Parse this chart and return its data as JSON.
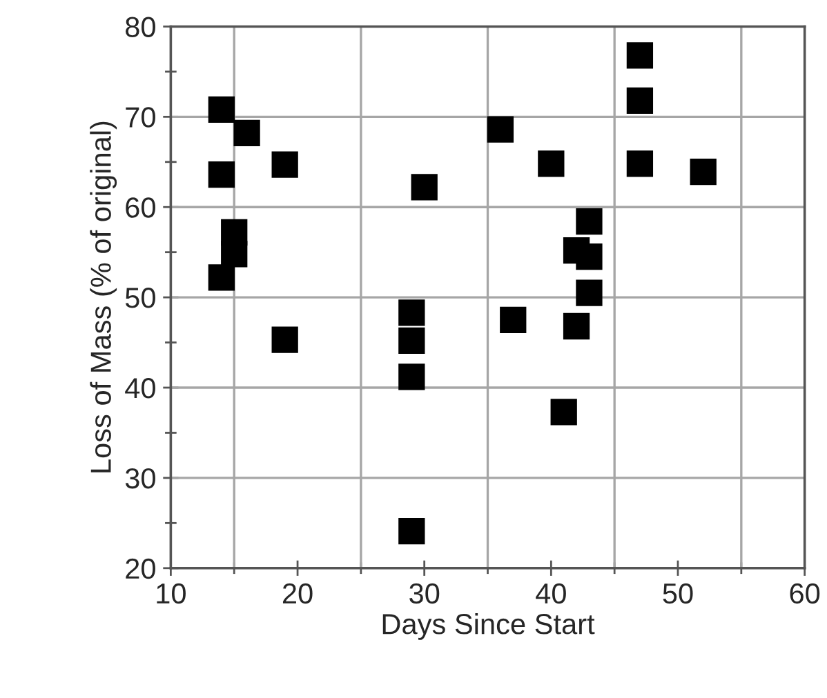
{
  "chart_data": {
    "type": "scatter",
    "xlabel": "Days Since Start",
    "ylabel": "Loss of Mass (% of original)",
    "x": [
      14,
      16,
      19,
      14,
      30,
      15,
      15,
      14,
      29,
      29,
      19,
      29,
      29,
      47,
      47,
      36,
      40,
      47,
      52,
      43,
      42,
      43,
      43,
      37,
      42,
      41
    ],
    "series": [
      {
        "color": "#000000",
        "values": [
          70.8,
          68.2,
          64.7,
          63.6,
          62.2,
          57.2,
          54.8,
          52.2,
          48.3,
          45.2,
          45.3,
          41.2,
          24.1,
          76.8,
          71.8,
          68.6,
          64.8,
          64.8,
          63.9,
          58.4,
          55.2,
          54.5,
          50.5,
          47.5,
          46.8,
          37.3
        ]
      }
    ],
    "xlim": [
      10,
      60
    ],
    "ylim": [
      20,
      80
    ],
    "xticks": [
      10,
      20,
      30,
      40,
      50,
      60,
      {
        "value": 15,
        "label": null
      },
      {
        "value": 25,
        "label": null
      },
      {
        "value": 35,
        "label": null
      },
      {
        "value": 45,
        "label": null
      },
      {
        "value": 55,
        "label": null
      }
    ],
    "yticks": [
      20,
      30,
      40,
      50,
      60,
      70,
      80,
      {
        "value": 25,
        "label": null
      },
      {
        "value": 35,
        "label": null
      },
      {
        "value": 45,
        "label": null
      },
      {
        "value": 55,
        "label": null
      },
      {
        "value": 65,
        "label": null
      },
      {
        "value": 75,
        "label": null
      }
    ],
    "grid": true,
    "marker": "square",
    "legend": false
  }
}
